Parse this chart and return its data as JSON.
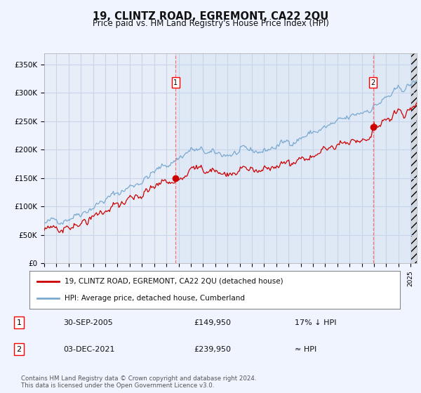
{
  "title": "19, CLINTZ ROAD, EGREMONT, CA22 2QU",
  "subtitle": "Price paid vs. HM Land Registry's House Price Index (HPI)",
  "bg_color": "#f0f4ff",
  "plot_bg_color": "#e8eef8",
  "plot_bg_shaded": "#dce6f5",
  "grid_color": "#c8d4e8",
  "red_line_color": "#cc0000",
  "blue_line_color": "#7aaad0",
  "marker1_date_idx": 0.333,
  "marker2_date_idx": 0.867,
  "sale1_label": "1",
  "sale2_label": "2",
  "sale1_date": "30-SEP-2005",
  "sale1_price": "£149,950",
  "sale1_note": "17% ↓ HPI",
  "sale2_date": "03-DEC-2021",
  "sale2_price": "£239,950",
  "sale2_note": "≈ HPI",
  "legend1": "19, CLINTZ ROAD, EGREMONT, CA22 2QU (detached house)",
  "legend2": "HPI: Average price, detached house, Cumberland",
  "footer": "Contains HM Land Registry data © Crown copyright and database right 2024.\nThis data is licensed under the Open Government Licence v3.0.",
  "ylim": [
    0,
    370000
  ],
  "yticks": [
    0,
    50000,
    100000,
    150000,
    200000,
    250000,
    300000,
    350000
  ],
  "ytick_labels": [
    "£0",
    "£50K",
    "£100K",
    "£150K",
    "£200K",
    "£250K",
    "£300K",
    "£350K"
  ],
  "year_start": 1995,
  "year_end": 2025,
  "sale1_year": 2005.75,
  "sale1_price_val": 149950,
  "sale2_year": 2021.92,
  "sale2_price_val": 239950
}
